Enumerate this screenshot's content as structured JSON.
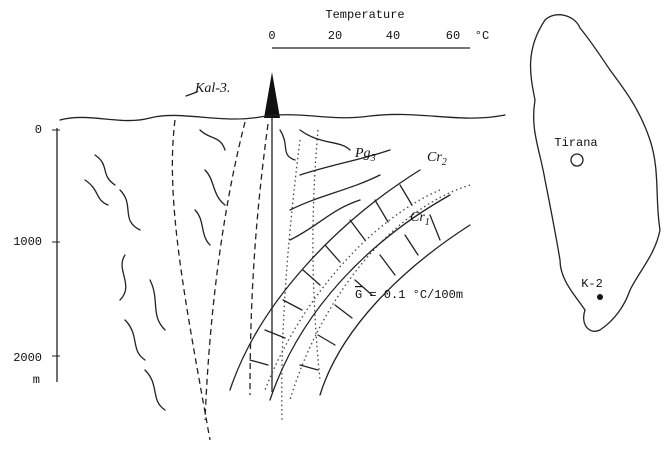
{
  "temperature_axis": {
    "title": "Temperature",
    "ticks": [
      "0",
      "20",
      "40",
      "60"
    ],
    "unit": "°C"
  },
  "well": {
    "label": "Kal-3."
  },
  "depth_axis": {
    "ticks": [
      "0",
      "1000",
      "2000"
    ],
    "unit": "m"
  },
  "formations": [
    {
      "label": "Pg",
      "sub": "3"
    },
    {
      "label": "Cr",
      "sub": "2"
    },
    {
      "label": "Cr",
      "sub": "1"
    }
  ],
  "gradient": {
    "symbol": "G",
    "text": "= 0.1 °C/100m"
  },
  "map": {
    "city": "Tirana",
    "well": "K-2"
  }
}
